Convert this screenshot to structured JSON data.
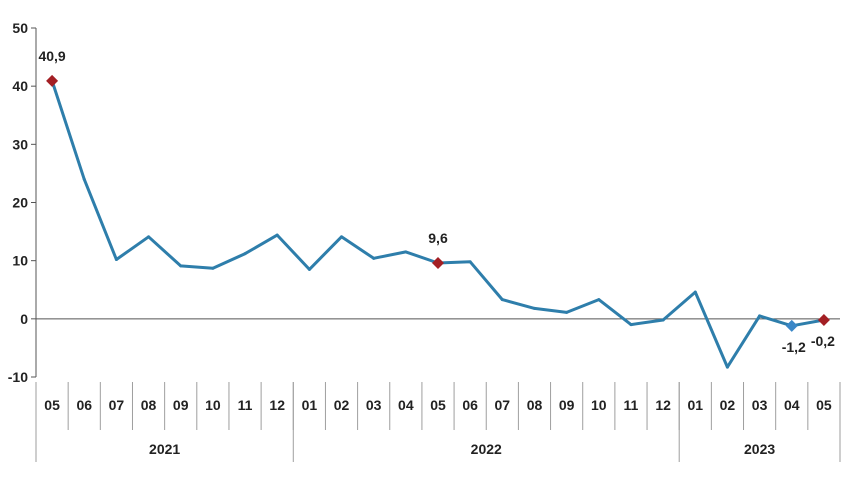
{
  "chart_data": {
    "type": "line",
    "yticks": [
      -10,
      0,
      10,
      20,
      30,
      40,
      50
    ],
    "ylim": [
      -10,
      50
    ],
    "x_months": [
      "05",
      "06",
      "07",
      "08",
      "09",
      "10",
      "11",
      "12",
      "01",
      "02",
      "03",
      "04",
      "05",
      "06",
      "07",
      "08",
      "09",
      "10",
      "11",
      "12",
      "01",
      "02",
      "03",
      "04",
      "05"
    ],
    "year_groups": [
      {
        "label": "2021",
        "start": 0,
        "count": 8
      },
      {
        "label": "2022",
        "start": 8,
        "count": 12
      },
      {
        "label": "2023",
        "start": 20,
        "count": 5
      }
    ],
    "values": [
      40.9,
      24.0,
      10.2,
      14.1,
      9.1,
      8.7,
      11.2,
      14.4,
      8.5,
      14.1,
      10.4,
      11.5,
      9.6,
      9.8,
      3.3,
      1.8,
      1.1,
      3.3,
      -1.0,
      -0.2,
      4.6,
      -8.3,
      0.5,
      -1.2,
      -0.2
    ],
    "markers": [
      {
        "index": 0,
        "label": "40,9",
        "color": "#a31f24",
        "shape": "diamond"
      },
      {
        "index": 12,
        "label": "9,6",
        "color": "#a31f24",
        "shape": "diamond"
      },
      {
        "index": 23,
        "label": "-1,2",
        "color": "#3a87c7",
        "shape": "diamond"
      },
      {
        "index": 24,
        "label": "-0,2",
        "color": "#a31f24",
        "shape": "diamond"
      }
    ],
    "series_color": "#2e7eab",
    "grid": "none"
  }
}
